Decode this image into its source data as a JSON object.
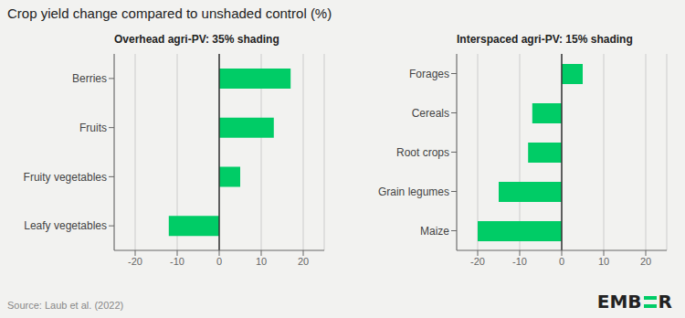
{
  "title": "Crop yield change compared to unshaded control (%)",
  "annotations": [
    "Source: Laub et al. (2022)",
    "EMB",
    "R"
  ],
  "chart_data": [
    {
      "type": "bar",
      "orientation": "horizontal",
      "subtitle": "Overhead agri-PV: 35% shading",
      "categories": [
        "Berries",
        "Fruits",
        "Fruity vegetables",
        "Leafy vegetables"
      ],
      "values": [
        17,
        13,
        5,
        -12
      ],
      "color": "#00CC66",
      "xlim": [
        -25,
        25
      ],
      "xticks": [
        -20,
        -10,
        0,
        10,
        20
      ],
      "grid": true
    },
    {
      "type": "bar",
      "orientation": "horizontal",
      "subtitle": "Interspaced agri-PV: 15% shading",
      "categories": [
        "Forages",
        "Cereals",
        "Root crops",
        "Grain legumes",
        "Maize"
      ],
      "values": [
        5,
        -7,
        -8,
        -15,
        -20
      ],
      "color": "#00CC66",
      "xlim": [
        -25,
        25
      ],
      "xticks": [
        -20,
        -10,
        0,
        10,
        20
      ],
      "grid": true
    }
  ]
}
